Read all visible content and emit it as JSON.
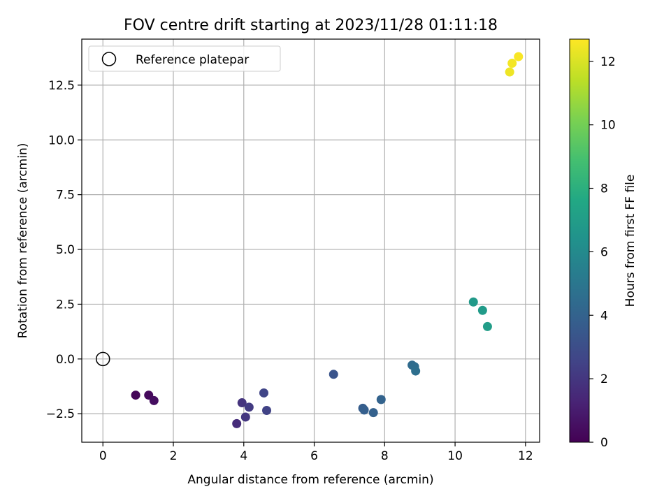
{
  "chart_data": {
    "type": "scatter",
    "title": "FOV centre drift starting at 2023/11/28 01:11:18",
    "xlabel": "Angular distance from reference (arcmin)",
    "ylabel": "Rotation from reference (arcmin)",
    "xlim": [
      -0.6,
      12.4
    ],
    "ylim": [
      -3.8,
      14.6
    ],
    "xticks": [
      0,
      2,
      4,
      6,
      8,
      10,
      12
    ],
    "xtick_labels": [
      "0",
      "2",
      "4",
      "6",
      "8",
      "10",
      "12"
    ],
    "yticks": [
      -2.5,
      0.0,
      2.5,
      5.0,
      7.5,
      10.0,
      12.5
    ],
    "ytick_labels": [
      "−2.5",
      "0.0",
      "2.5",
      "5.0",
      "7.5",
      "10.0",
      "12.5"
    ],
    "grid": true,
    "legend": {
      "position": "top-left",
      "entries": [
        "Reference platepar"
      ]
    },
    "reference_point": {
      "name": "Reference platepar",
      "x": 0,
      "y": 0
    },
    "colorbar": {
      "label": "Hours from first FF file",
      "range": [
        0,
        12.7
      ],
      "ticks": [
        0,
        2,
        4,
        6,
        8,
        10,
        12
      ],
      "tick_labels": [
        "0",
        "2",
        "4",
        "6",
        "8",
        "10",
        "12"
      ],
      "colormap": "viridis"
    },
    "points": [
      {
        "x": 0.93,
        "y": -1.65,
        "hours": 0.15
      },
      {
        "x": 1.3,
        "y": -1.65,
        "hours": 0.3
      },
      {
        "x": 1.45,
        "y": -1.9,
        "hours": 0.45
      },
      {
        "x": 3.8,
        "y": -2.95,
        "hours": 1.6
      },
      {
        "x": 3.95,
        "y": -2.0,
        "hours": 1.9
      },
      {
        "x": 4.05,
        "y": -2.65,
        "hours": 2.0
      },
      {
        "x": 4.15,
        "y": -2.2,
        "hours": 2.2
      },
      {
        "x": 4.57,
        "y": -1.55,
        "hours": 2.6
      },
      {
        "x": 4.65,
        "y": -2.35,
        "hours": 2.5
      },
      {
        "x": 6.55,
        "y": -0.7,
        "hours": 3.3
      },
      {
        "x": 7.38,
        "y": -2.25,
        "hours": 3.7
      },
      {
        "x": 7.42,
        "y": -2.33,
        "hours": 3.8
      },
      {
        "x": 7.68,
        "y": -2.45,
        "hours": 3.9
      },
      {
        "x": 7.9,
        "y": -1.85,
        "hours": 4.0
      },
      {
        "x": 8.78,
        "y": -0.28,
        "hours": 4.4
      },
      {
        "x": 8.85,
        "y": -0.35,
        "hours": 4.5
      },
      {
        "x": 8.88,
        "y": -0.55,
        "hours": 4.6
      },
      {
        "x": 10.52,
        "y": 2.6,
        "hours": 6.8
      },
      {
        "x": 10.78,
        "y": 2.22,
        "hours": 6.9
      },
      {
        "x": 10.92,
        "y": 1.48,
        "hours": 7.0
      },
      {
        "x": 11.55,
        "y": 13.1,
        "hours": 12.4
      },
      {
        "x": 11.62,
        "y": 13.5,
        "hours": 12.5
      },
      {
        "x": 11.8,
        "y": 13.8,
        "hours": 12.6
      }
    ]
  }
}
